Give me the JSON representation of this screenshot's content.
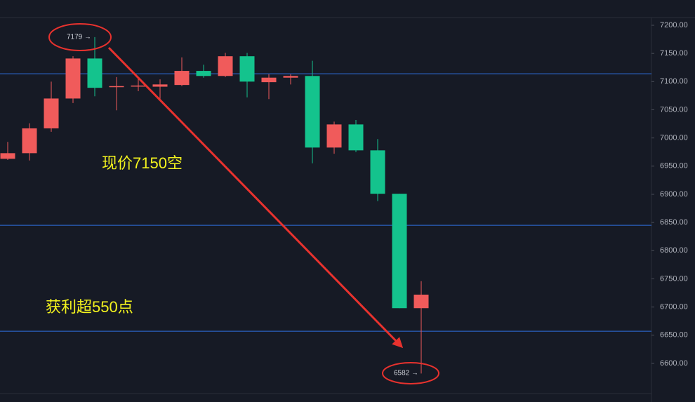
{
  "chart_data": {
    "type": "candlestick",
    "open": [
      6963,
      6973,
      7017,
      7070,
      7141,
      7091,
      7092,
      7091,
      7094,
      7119,
      7110,
      7145,
      7099,
      7107,
      7110,
      6983,
      7024,
      6978,
      6901,
      6698
    ],
    "high": [
      6993,
      7026,
      7100,
      7145,
      7179,
      7108,
      7105,
      7104,
      7143,
      7130,
      7151,
      7151,
      7113,
      7113,
      7137,
      7029,
      7032,
      6998,
      6901,
      6746
    ],
    "low": [
      6961,
      6960,
      7011,
      7062,
      7074,
      7049,
      7083,
      7069,
      7092,
      7107,
      7108,
      7072,
      7069,
      7095,
      6955,
      6972,
      6975,
      6888,
      6698,
      6582
    ],
    "close": [
      6973,
      7017,
      7070,
      7141,
      7089,
      7092,
      7093,
      7095,
      7119,
      7110,
      7145,
      7100,
      7107,
      7110,
      6983,
      7024,
      6978,
      6901,
      6698,
      6722
    ],
    "up_color": "#f05b5b",
    "down_color": "#14c38d",
    "levels": [
      7114,
      6845,
      6657
    ],
    "level_color": "#2f6fe0",
    "ylim": [
      6531.5,
      7244.8
    ],
    "yticks": [
      {
        "value": 7200,
        "label": "7200.00"
      },
      {
        "value": 7150,
        "label": "7150.00"
      },
      {
        "value": 7100,
        "label": "7100.00"
      },
      {
        "value": 7050,
        "label": "7050.00"
      },
      {
        "value": 7000,
        "label": "7000.00"
      },
      {
        "value": 6950,
        "label": "6950.00"
      },
      {
        "value": 6900,
        "label": "6900.00"
      },
      {
        "value": 6850,
        "label": "6850.00"
      },
      {
        "value": 6800,
        "label": "6800.00"
      },
      {
        "value": 6750,
        "label": "6750.00"
      },
      {
        "value": 6700,
        "label": "6700.00"
      },
      {
        "value": 6650,
        "label": "6650.00"
      },
      {
        "value": 6600,
        "label": "6600.00"
      }
    ],
    "high_marker": "7179 →",
    "low_marker": "6582 →",
    "annotations": [
      "现价7150空",
      "获利超550点"
    ]
  }
}
